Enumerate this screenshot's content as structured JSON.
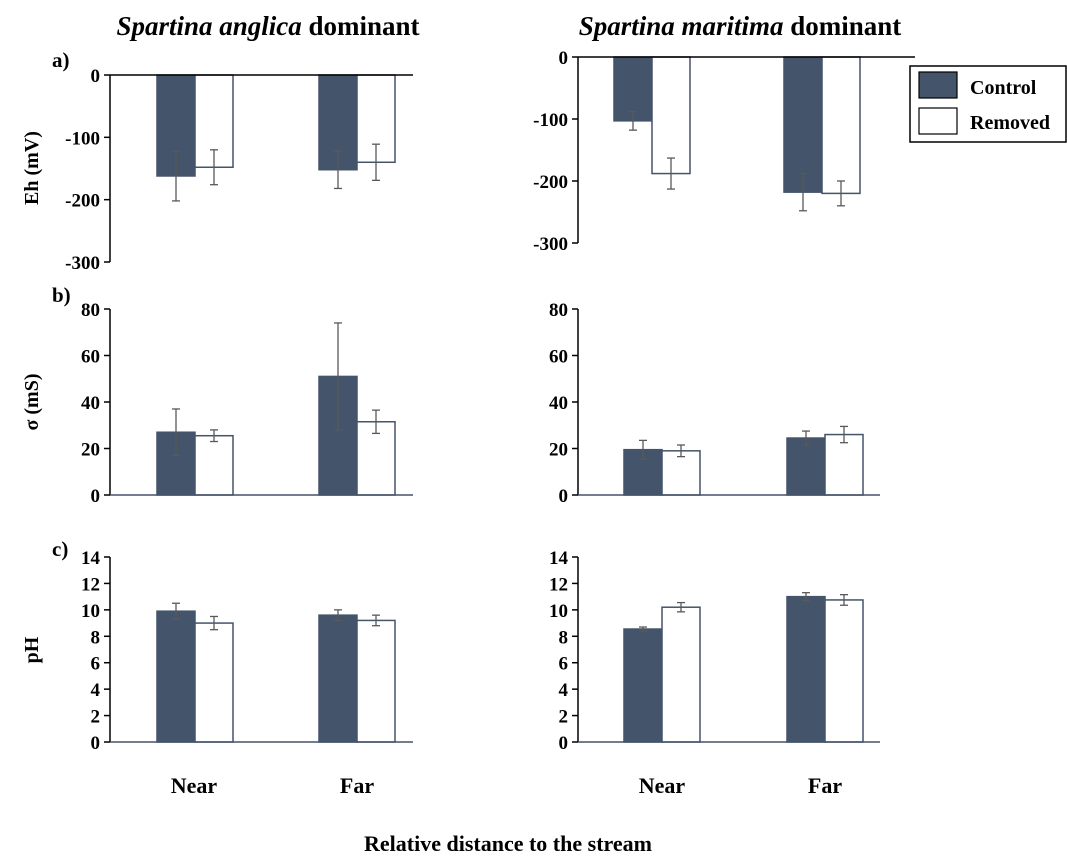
{
  "titles": {
    "left_species": "Spartina anglica",
    "left_suffix": " dominant",
    "right_species": "Spartina maritima",
    "right_suffix": " dominant"
  },
  "panel_labels": [
    "a)",
    "b)",
    "c)"
  ],
  "ylabels": {
    "eh": "Eh (mV)",
    "sigma": "σ (mS)",
    "ph": "pH"
  },
  "xlabel": "Relative distance to the stream",
  "legend": [
    {
      "label": "Control",
      "color": "#44546a"
    },
    {
      "label": "Removed",
      "color": "#ffffff"
    }
  ],
  "colors": {
    "control": "#44546a",
    "removed": "#ffffff",
    "outline": "#44546a",
    "axis": "#000000",
    "errorbar": "#595959"
  },
  "chart_data": [
    {
      "type": "bar",
      "panel": "a)",
      "site": "Spartina anglica dominant",
      "ylabel": "Eh (mV)",
      "ylim": [
        -300,
        0
      ],
      "yticks": [
        0,
        -100,
        -200,
        -300
      ],
      "categories": [
        "Near",
        "Far"
      ],
      "series": [
        {
          "name": "Control",
          "values": [
            -162,
            -152
          ],
          "errors": [
            40,
            30
          ]
        },
        {
          "name": "Removed",
          "values": [
            -148,
            -140
          ],
          "errors": [
            28,
            29
          ]
        }
      ]
    },
    {
      "type": "bar",
      "panel": "a)",
      "site": "Spartina maritima dominant",
      "ylabel": "Eh (mV)",
      "ylim": [
        -300,
        0
      ],
      "yticks": [
        0,
        -100,
        -200,
        -300
      ],
      "categories": [
        "Near",
        "Far"
      ],
      "series": [
        {
          "name": "Control",
          "values": [
            -103,
            -218
          ],
          "errors": [
            15,
            30
          ]
        },
        {
          "name": "Removed",
          "values": [
            -188,
            -220
          ],
          "errors": [
            25,
            20
          ]
        }
      ]
    },
    {
      "type": "bar",
      "panel": "b)",
      "site": "Spartina anglica dominant",
      "ylabel": "σ (mS)",
      "ylim": [
        0,
        80
      ],
      "yticks": [
        0,
        20,
        40,
        60,
        80
      ],
      "categories": [
        "Near",
        "Far"
      ],
      "series": [
        {
          "name": "Control",
          "values": [
            27,
            51
          ],
          "errors": [
            10,
            23
          ]
        },
        {
          "name": "Removed",
          "values": [
            25.5,
            31.5
          ],
          "errors": [
            2.5,
            5
          ]
        }
      ]
    },
    {
      "type": "bar",
      "panel": "b)",
      "site": "Spartina maritima dominant",
      "ylabel": "σ (mS)",
      "ylim": [
        0,
        80
      ],
      "yticks": [
        0,
        20,
        40,
        60,
        80
      ],
      "categories": [
        "Near",
        "Far"
      ],
      "series": [
        {
          "name": "Control",
          "values": [
            19.5,
            24.5
          ],
          "errors": [
            4,
            3
          ]
        },
        {
          "name": "Removed",
          "values": [
            19,
            26
          ],
          "errors": [
            2.5,
            3.5
          ]
        }
      ]
    },
    {
      "type": "bar",
      "panel": "c)",
      "site": "Spartina anglica dominant",
      "ylabel": "pH",
      "ylim": [
        0,
        14
      ],
      "yticks": [
        0,
        2,
        4,
        6,
        8,
        10,
        12,
        14
      ],
      "categories": [
        "Near",
        "Far"
      ],
      "series": [
        {
          "name": "Control",
          "values": [
            9.9,
            9.6
          ],
          "errors": [
            0.6,
            0.4
          ]
        },
        {
          "name": "Removed",
          "values": [
            9.0,
            9.2
          ],
          "errors": [
            0.5,
            0.4
          ]
        }
      ]
    },
    {
      "type": "bar",
      "panel": "c)",
      "site": "Spartina maritima dominant",
      "ylabel": "pH",
      "ylim": [
        0,
        14
      ],
      "yticks": [
        0,
        2,
        4,
        6,
        8,
        10,
        12,
        14
      ],
      "categories": [
        "Near",
        "Far"
      ],
      "series": [
        {
          "name": "Control",
          "values": [
            8.55,
            11.0
          ],
          "errors": [
            0.15,
            0.3
          ]
        },
        {
          "name": "Removed",
          "values": [
            10.2,
            10.75
          ],
          "errors": [
            0.35,
            0.4
          ]
        }
      ]
    }
  ]
}
